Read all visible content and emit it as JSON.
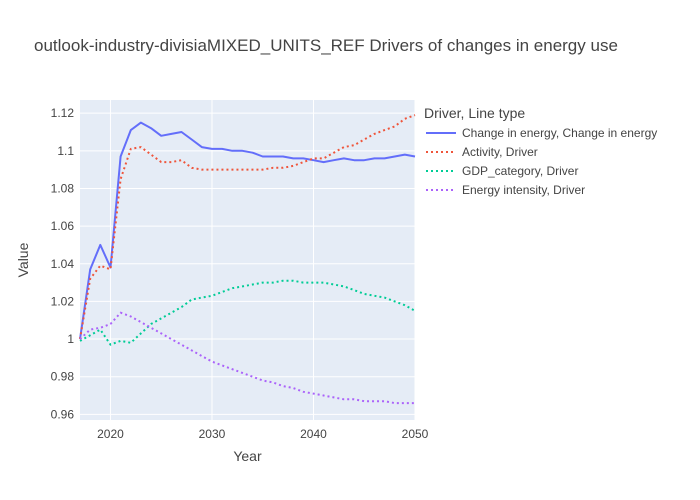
{
  "chart_data": {
    "type": "line",
    "title": "outlook-industry-divisiaMIXED_UNITS_REF Drivers of changes in energy use",
    "xlabel": "Year",
    "ylabel": "Value",
    "xlim": [
      2017,
      2050
    ],
    "ylim": [
      0.957,
      1.127
    ],
    "x_ticks": [
      2020,
      2030,
      2040,
      2050
    ],
    "y_ticks": [
      0.96,
      0.98,
      1,
      1.02,
      1.04,
      1.06,
      1.08,
      1.1,
      1.12
    ],
    "y_tick_labels": [
      "0.96",
      "0.98",
      "1",
      "1.02",
      "1.04",
      "1.06",
      "1.08",
      "1.1",
      "1.12"
    ],
    "grid": true,
    "legend_title": "Driver, Line type",
    "legend_position": "right",
    "x": [
      2017,
      2018,
      2019,
      2020,
      2021,
      2022,
      2023,
      2024,
      2025,
      2026,
      2027,
      2028,
      2029,
      2030,
      2031,
      2032,
      2033,
      2034,
      2035,
      2036,
      2037,
      2038,
      2039,
      2040,
      2041,
      2042,
      2043,
      2044,
      2045,
      2046,
      2047,
      2048,
      2049,
      2050
    ],
    "series": [
      {
        "name": "Change in energy, Change in energy",
        "color": "#636efa",
        "dash": "solid",
        "values": [
          1.0,
          1.037,
          1.05,
          1.038,
          1.097,
          1.111,
          1.115,
          1.112,
          1.108,
          1.109,
          1.11,
          1.106,
          1.102,
          1.101,
          1.101,
          1.1,
          1.1,
          1.099,
          1.097,
          1.097,
          1.097,
          1.096,
          1.096,
          1.095,
          1.094,
          1.095,
          1.096,
          1.095,
          1.095,
          1.096,
          1.096,
          1.097,
          1.098,
          1.097
        ]
      },
      {
        "name": "Activity, Driver",
        "color": "#ef553b",
        "dash": "dot",
        "values": [
          1.0,
          1.032,
          1.039,
          1.037,
          1.085,
          1.101,
          1.102,
          1.098,
          1.094,
          1.094,
          1.095,
          1.091,
          1.09,
          1.09,
          1.09,
          1.09,
          1.09,
          1.09,
          1.09,
          1.091,
          1.091,
          1.092,
          1.094,
          1.096,
          1.096,
          1.099,
          1.102,
          1.103,
          1.106,
          1.109,
          1.111,
          1.113,
          1.117,
          1.119
        ]
      },
      {
        "name": "GDP_category, Driver",
        "color": "#00cc96",
        "dash": "dot",
        "values": [
          0.999,
          1.002,
          1.005,
          0.997,
          0.999,
          0.998,
          1.003,
          1.008,
          1.011,
          1.014,
          1.017,
          1.021,
          1.022,
          1.023,
          1.025,
          1.027,
          1.028,
          1.029,
          1.03,
          1.03,
          1.031,
          1.031,
          1.03,
          1.03,
          1.03,
          1.029,
          1.028,
          1.026,
          1.024,
          1.023,
          1.022,
          1.02,
          1.018,
          1.015
        ]
      },
      {
        "name": "Energy intensity, Driver",
        "color": "#ab63fa",
        "dash": "dot",
        "values": [
          1.0,
          1.005,
          1.006,
          1.008,
          1.014,
          1.012,
          1.009,
          1.006,
          1.003,
          1.0,
          0.997,
          0.994,
          0.991,
          0.988,
          0.986,
          0.984,
          0.982,
          0.98,
          0.978,
          0.977,
          0.975,
          0.974,
          0.972,
          0.971,
          0.97,
          0.969,
          0.968,
          0.968,
          0.967,
          0.967,
          0.967,
          0.966,
          0.966,
          0.966
        ]
      }
    ]
  }
}
